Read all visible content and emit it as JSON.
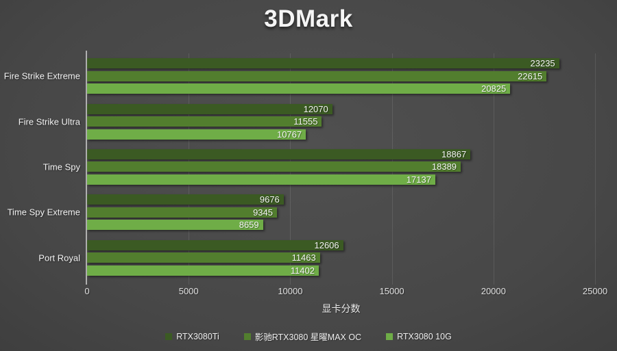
{
  "title": "3DMark",
  "chart_data": {
    "type": "bar",
    "orientation": "horizontal",
    "title": "3DMark",
    "categories": [
      "Fire Strike Extreme",
      "Fire Strike Ultra",
      "Time Spy",
      "Time Spy Extreme",
      "Port Royal"
    ],
    "series": [
      {
        "name": "RTX3080Ti",
        "color": "#3B5A23",
        "values": [
          23235,
          12070,
          18867,
          9676,
          12606
        ]
      },
      {
        "name": "影驰RTX3080 星曜MAX OC",
        "color": "#527E2E",
        "values": [
          22615,
          11555,
          18389,
          9345,
          11463
        ]
      },
      {
        "name": "RTX3080 10G",
        "color": "#6FAD47",
        "values": [
          20825,
          10767,
          17137,
          8659,
          11402
        ]
      }
    ],
    "xlabel": "显卡分数",
    "xlim": [
      0,
      25000
    ],
    "xticks": [
      "0",
      "5000",
      "10000",
      "15000",
      "20000",
      "25000"
    ],
    "grid": true,
    "legend_position": "bottom",
    "colors": {
      "background_center": "#4a4a4a",
      "background_edge": "#262626",
      "axis_line": "#b0b0b0",
      "text": "#f2f2f2"
    }
  }
}
